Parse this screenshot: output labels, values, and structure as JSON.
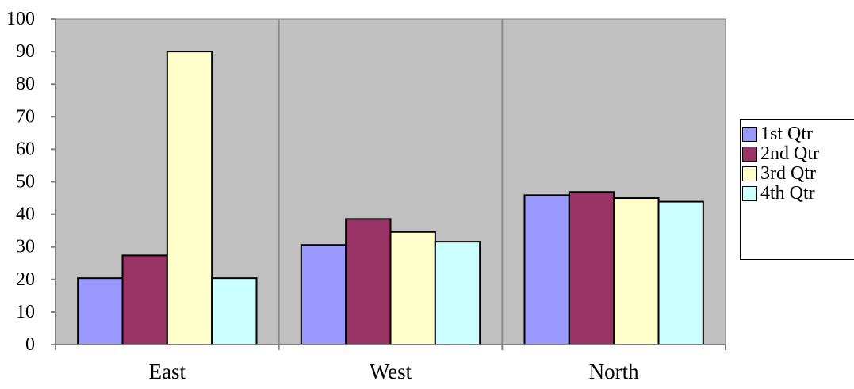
{
  "chart_data": {
    "type": "bar",
    "categories": [
      "East",
      "West",
      "North"
    ],
    "series": [
      {
        "name": "1st Qtr",
        "values": [
          20.4,
          30.6,
          45.9
        ],
        "color": "#9999ff"
      },
      {
        "name": "2nd Qtr",
        "values": [
          27.4,
          38.6,
          46.9
        ],
        "color": "#993366"
      },
      {
        "name": "3rd Qtr",
        "values": [
          90,
          34.6,
          45
        ],
        "color": "#ffffcc"
      },
      {
        "name": "4th Qtr",
        "values": [
          20.4,
          31.6,
          43.9
        ],
        "color": "#ccffff"
      }
    ],
    "ylim": [
      0,
      100
    ],
    "yticks": [
      0,
      10,
      20,
      30,
      40,
      50,
      60,
      70,
      80,
      90,
      100
    ],
    "title": "",
    "xlabel": "",
    "ylabel": "",
    "plot_background": "#c0c0c0",
    "grid": false,
    "legend_position": "right"
  }
}
